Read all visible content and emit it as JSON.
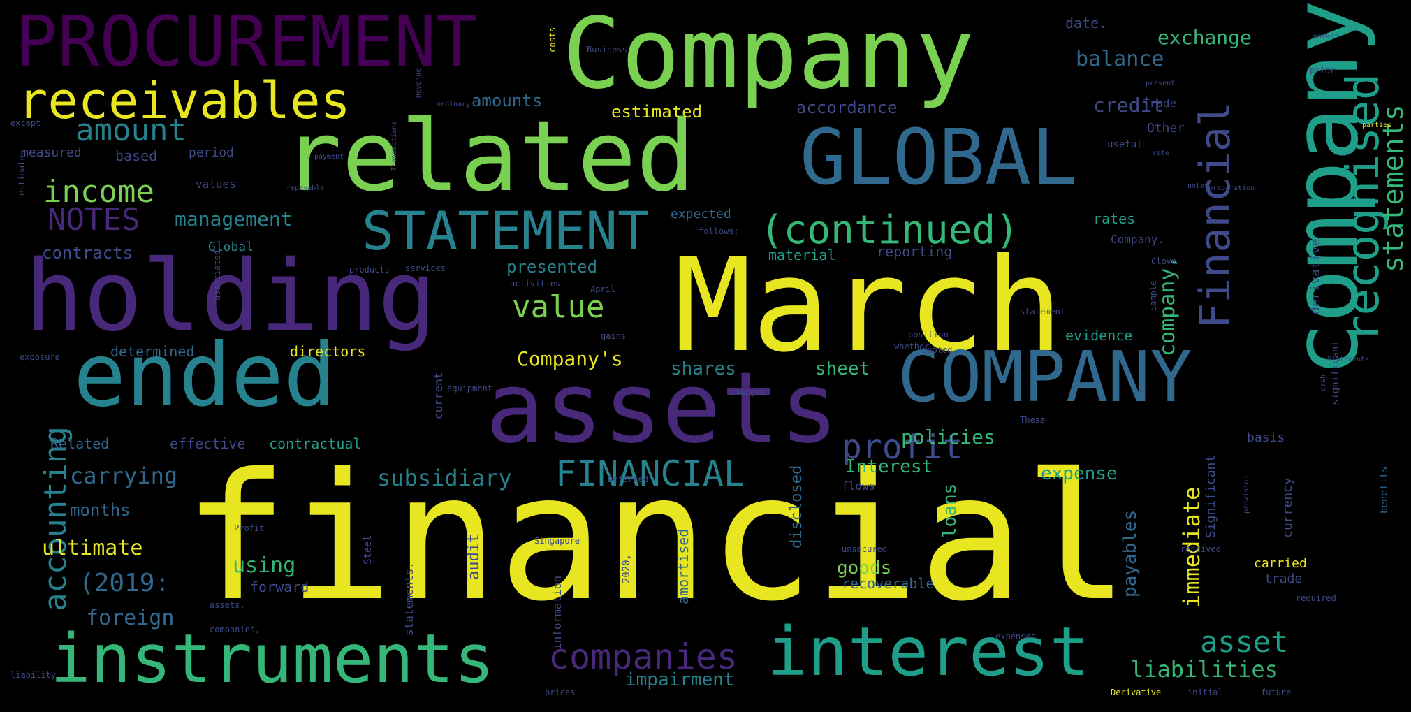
{
  "palette": {
    "background": "#000000",
    "yellow": "#e8e621",
    "light-green": "#7ad151",
    "green": "#35b779",
    "teal": "#1f9e89",
    "cyan": "#26828e",
    "blue": "#31688e",
    "indigo": "#3e4a89",
    "purple": "#482878",
    "dark-purple": "#440154"
  },
  "words": [
    {
      "text": "financial",
      "color": "yellow"
    },
    {
      "text": "March",
      "color": "yellow"
    },
    {
      "text": "Company",
      "color": "light-green"
    },
    {
      "text": "company",
      "color": "teal"
    },
    {
      "text": "related",
      "color": "light-green"
    },
    {
      "text": "holding",
      "color": "purple"
    },
    {
      "text": "assets",
      "color": "purple"
    },
    {
      "text": "ended",
      "color": "cyan"
    },
    {
      "text": "GLOBAL",
      "color": "blue"
    },
    {
      "text": "PROCUREMENT",
      "color": "dark-purple"
    },
    {
      "text": "COMPANY",
      "color": "blue"
    },
    {
      "text": "instruments",
      "color": "green"
    },
    {
      "text": "interest",
      "color": "teal"
    },
    {
      "text": "receivables",
      "color": "yellow"
    },
    {
      "text": "STATEMENT",
      "color": "cyan"
    },
    {
      "text": "recognised",
      "color": "teal"
    },
    {
      "text": "Financial",
      "color": "indigo"
    },
    {
      "text": "(continued)",
      "color": "green"
    },
    {
      "text": "FINANCIAL",
      "color": "cyan"
    },
    {
      "text": "statements",
      "color": "green"
    },
    {
      "text": "companies",
      "color": "purple"
    },
    {
      "text": "accounting",
      "color": "cyan"
    },
    {
      "text": "profit",
      "color": "indigo"
    },
    {
      "text": "amount",
      "color": "cyan"
    },
    {
      "text": "income",
      "color": "light-green"
    },
    {
      "text": "NOTES",
      "color": "purple"
    },
    {
      "text": "value",
      "color": "light-green"
    },
    {
      "text": "asset",
      "color": "teal"
    },
    {
      "text": "liabilities",
      "color": "green"
    },
    {
      "text": "subsidiary",
      "color": "cyan"
    },
    {
      "text": "carrying",
      "color": "blue"
    },
    {
      "text": "management",
      "color": "cyan"
    },
    {
      "text": "company,",
      "color": "green"
    },
    {
      "text": "immediate",
      "color": "yellow"
    },
    {
      "text": "(2019:",
      "color": "blue"
    },
    {
      "text": "ultimate",
      "color": "yellow"
    },
    {
      "text": "using",
      "color": "green"
    },
    {
      "text": "foreign",
      "color": "blue"
    },
    {
      "text": "policies",
      "color": "green"
    },
    {
      "text": "balance",
      "color": "blue"
    },
    {
      "text": "Company's",
      "color": "yellow"
    },
    {
      "text": "shares",
      "color": "cyan"
    },
    {
      "text": "sheet",
      "color": "green"
    },
    {
      "text": "exchange",
      "color": "green"
    },
    {
      "text": "credit",
      "color": "indigo"
    },
    {
      "text": "Interest",
      "color": "green"
    },
    {
      "text": "expense",
      "color": "teal"
    },
    {
      "text": "impairment",
      "color": "cyan"
    },
    {
      "text": "goods",
      "color": "light-green"
    },
    {
      "text": "loans",
      "color": "green"
    },
    {
      "text": "payables",
      "color": "blue"
    },
    {
      "text": "presented",
      "color": "cyan"
    },
    {
      "text": "amounts",
      "color": "blue"
    },
    {
      "text": "estimated",
      "color": "yellow"
    },
    {
      "text": "accordance",
      "color": "indigo"
    },
    {
      "text": "contracts",
      "color": "indigo"
    },
    {
      "text": "months",
      "color": "blue"
    },
    {
      "text": "Related",
      "color": "blue"
    },
    {
      "text": "effective",
      "color": "indigo"
    },
    {
      "text": "contractual",
      "color": "teal"
    },
    {
      "text": "directors",
      "color": "yellow"
    },
    {
      "text": "determined",
      "color": "blue"
    },
    {
      "text": "rates",
      "color": "teal"
    },
    {
      "text": "reporting",
      "color": "indigo"
    },
    {
      "text": "material",
      "color": "teal"
    },
    {
      "text": "evidence",
      "color": "teal"
    },
    {
      "text": "recoverable",
      "color": "blue"
    },
    {
      "text": "forward",
      "color": "indigo"
    },
    {
      "text": "audit",
      "color": "indigo"
    },
    {
      "text": "disclosed",
      "color": "blue"
    },
    {
      "text": "amortised",
      "color": "blue"
    },
    {
      "text": "based",
      "color": "indigo"
    },
    {
      "text": "period",
      "color": "indigo"
    },
    {
      "text": "measured",
      "color": "indigo"
    },
    {
      "text": "values",
      "color": "indigo"
    },
    {
      "text": "date.",
      "color": "indigo"
    },
    {
      "text": "Trade",
      "color": "indigo"
    },
    {
      "text": "carried",
      "color": "yellow"
    },
    {
      "text": "basis",
      "color": "indigo"
    },
    {
      "text": "Significant",
      "color": "indigo"
    },
    {
      "text": "currency",
      "color": "indigo"
    },
    {
      "text": "derivative",
      "color": "indigo"
    },
    {
      "text": "significant",
      "color": "indigo"
    },
    {
      "text": "Other",
      "color": "indigo"
    },
    {
      "text": "trade",
      "color": "indigo"
    },
    {
      "text": "expected",
      "color": "blue"
    },
    {
      "text": "Global",
      "color": "cyan"
    },
    {
      "text": "flows",
      "color": "indigo"
    },
    {
      "text": "information",
      "color": "indigo"
    },
    {
      "text": "statements.",
      "color": "indigo"
    },
    {
      "text": "current",
      "color": "indigo"
    },
    {
      "text": "useful",
      "color": "indigo"
    },
    {
      "text": "Deferred",
      "color": "indigo"
    },
    {
      "text": "Singapore",
      "color": "indigo"
    },
    {
      "text": "2020,",
      "color": "indigo"
    },
    {
      "text": "Company.",
      "color": "indigo"
    },
    {
      "text": "follows:",
      "color": "indigo"
    },
    {
      "text": "gains",
      "color": "indigo"
    },
    {
      "text": "position",
      "color": "indigo"
    },
    {
      "text": "quoted",
      "color": "indigo"
    },
    {
      "text": "whether",
      "color": "indigo"
    },
    {
      "text": "benefits",
      "color": "blue"
    },
    {
      "text": "except",
      "color": "indigo"
    },
    {
      "text": "payment",
      "color": "indigo"
    },
    {
      "text": "repayable",
      "color": "indigo"
    },
    {
      "text": "ordinary",
      "color": "indigo"
    },
    {
      "text": "Transactions",
      "color": "indigo"
    },
    {
      "text": "services",
      "color": "indigo"
    },
    {
      "text": "present",
      "color": "indigo"
    },
    {
      "text": "market",
      "color": "indigo"
    },
    {
      "text": "parties",
      "color": "yellow"
    },
    {
      "text": "prior",
      "color": "indigo"
    },
    {
      "text": "required",
      "color": "indigo"
    },
    {
      "text": "provision",
      "color": "indigo"
    },
    {
      "text": "received",
      "color": "indigo"
    },
    {
      "text": "unsecured",
      "color": "indigo"
    },
    {
      "text": "expenses",
      "color": "indigo"
    },
    {
      "text": "Derivative",
      "color": "yellow"
    },
    {
      "text": "initial",
      "color": "indigo"
    },
    {
      "text": "future",
      "color": "indigo"
    },
    {
      "text": "prices",
      "color": "indigo"
    },
    {
      "text": "equipment",
      "color": "indigo"
    },
    {
      "text": "companies,",
      "color": "indigo"
    },
    {
      "text": "assets.",
      "color": "indigo"
    },
    {
      "text": "products",
      "color": "indigo"
    },
    {
      "text": "associated",
      "color": "indigo"
    },
    {
      "text": "exposure",
      "color": "indigo"
    },
    {
      "text": "Steel",
      "color": "indigo"
    },
    {
      "text": "Profit",
      "color": "indigo"
    },
    {
      "text": "activities",
      "color": "indigo"
    },
    {
      "text": "April",
      "color": "indigo"
    },
    {
      "text": "changes",
      "color": "indigo"
    },
    {
      "text": "statement",
      "color": "indigo"
    },
    {
      "text": "These",
      "color": "indigo"
    },
    {
      "text": "Clove",
      "color": "indigo"
    },
    {
      "text": "Business",
      "color": "indigo"
    },
    {
      "text": "costs",
      "color": "yellow"
    },
    {
      "text": "liability",
      "color": "indigo"
    },
    {
      "text": "Sample",
      "color": "indigo"
    },
    {
      "text": "estimates",
      "color": "indigo"
    },
    {
      "text": "Revenue",
      "color": "indigo"
    },
    {
      "text": "rate",
      "color": "indigo"
    },
    {
      "text": "notes",
      "color": "indigo"
    },
    {
      "text": "preparation",
      "color": "indigo"
    },
    {
      "text": "cash",
      "color": "indigo"
    },
    {
      "text": "Statements",
      "color": "indigo"
    }
  ]
}
